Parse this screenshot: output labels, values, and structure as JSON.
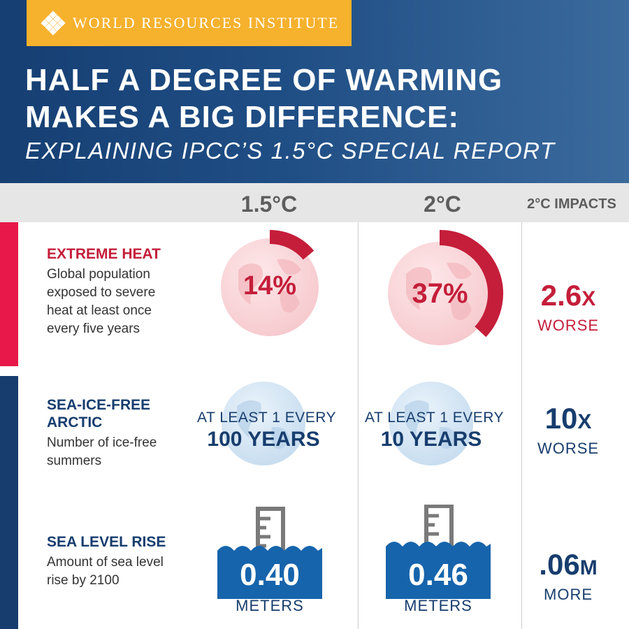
{
  "header": {
    "brand": "WORLD RESOURCES INSTITUTE",
    "title": "HALF A DEGREE OF WARMING\nMAKES A BIG DIFFERENCE:",
    "subtitle": "EXPLAINING IPCC’S 1.5°C SPECIAL REPORT"
  },
  "columns": {
    "c15": "1.5°C",
    "c2": "2°C",
    "impacts": "2°C IMPACTS"
  },
  "colors": {
    "navy": "#1f4e85",
    "gold": "#f6b12d",
    "heat_red": "#c41e3a",
    "sidebar_red": "#e8194a",
    "sidebar_blue": "#173d6e",
    "ocean_blue": "#1664ac"
  },
  "rows": {
    "heat": {
      "title": "EXTREME HEAT",
      "description": "Global population\nexposed to severe\nheat at least once\nevery five years",
      "value_15": "14%",
      "fraction_15": 0.14,
      "value_2": "37%",
      "fraction_2": 0.37,
      "impact_value": "2.6",
      "impact_suffix": "X",
      "impact_label": "WORSE",
      "icon": "globe-icon"
    },
    "arctic": {
      "title": "SEA-ICE-FREE\nARCTIC",
      "description": "Number of ice-free\nsummers",
      "line1_15": "AT LEAST 1 EVERY",
      "line2_15": "100 YEARS",
      "line1_2": "AT LEAST 1 EVERY",
      "line2_2": "10 YEARS",
      "impact_value": "10",
      "impact_suffix": "X",
      "impact_label": "WORSE",
      "icon": "globe-icon"
    },
    "sea": {
      "title": "SEA LEVEL RISE",
      "description": "Amount of sea level\nrise by 2100",
      "value_15": "0.40",
      "unit_15": "METERS",
      "value_2": "0.46",
      "unit_2": "METERS",
      "impact_value": ".06",
      "impact_suffix": "M",
      "impact_label": "MORE",
      "icon": "measuring-gauge-icon"
    }
  }
}
